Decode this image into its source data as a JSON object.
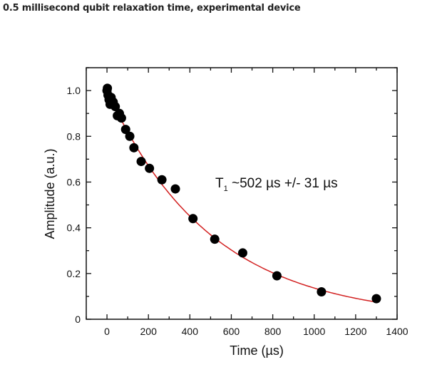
{
  "page": {
    "title": "0.5 millisecond qubit relaxation time, experimental device"
  },
  "chart_data": {
    "type": "scatter",
    "title": "",
    "xlabel": "Time (µs)",
    "ylabel": "Amplitude (a.u.)",
    "xlim": [
      -100,
      1400
    ],
    "ylim": [
      0,
      1.1
    ],
    "xticks": [
      0,
      200,
      400,
      600,
      800,
      1000,
      1200,
      1400
    ],
    "xtick_labels": [
      "0",
      "200",
      "400",
      "600",
      "800",
      "1000",
      "1200",
      "1400"
    ],
    "yticks": [
      0,
      0.2,
      0.4,
      0.6,
      0.8,
      1.0
    ],
    "ytick_labels": [
      "0",
      "0.2",
      "0.4",
      "0.6",
      "0.8",
      "1.0"
    ],
    "grid": false,
    "annotation": {
      "main": "T",
      "sub": "1",
      "rest": " ~502 µs +/- 31 µs"
    },
    "series": [
      {
        "name": "data",
        "color": "#000000",
        "x": [
          0,
          2,
          5,
          10,
          15,
          20,
          30,
          40,
          50,
          60,
          70,
          90,
          110,
          130,
          165,
          205,
          265,
          330,
          415,
          520,
          655,
          820,
          1035,
          1300
        ],
        "y": [
          1.0,
          1.01,
          0.98,
          0.96,
          0.94,
          0.97,
          0.95,
          0.93,
          0.89,
          0.9,
          0.88,
          0.83,
          0.8,
          0.75,
          0.69,
          0.66,
          0.61,
          0.57,
          0.44,
          0.35,
          0.29,
          0.19,
          0.12,
          0.09
        ]
      },
      {
        "name": "exponential fit",
        "color": "#d21f1f",
        "amplitude": 1.0,
        "T1": 502,
        "x_range": [
          0,
          1300
        ]
      }
    ]
  }
}
